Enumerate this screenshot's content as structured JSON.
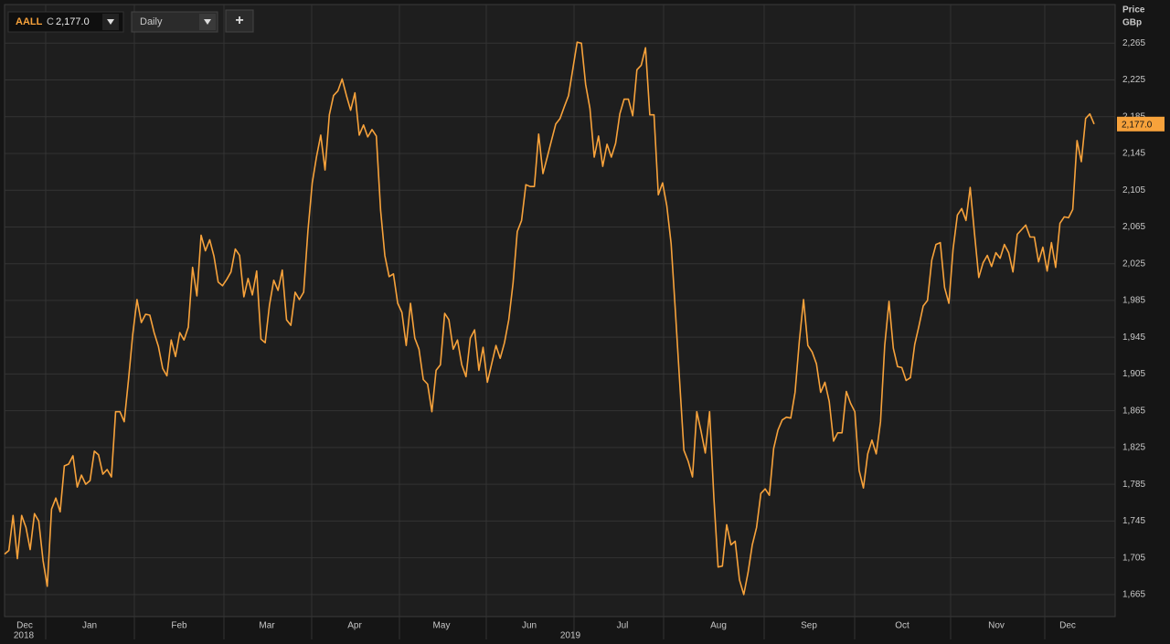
{
  "toolbar": {
    "symbol": "AALL",
    "close_prefix": "C",
    "interval": "Daily",
    "add": "+"
  },
  "chart_data": {
    "type": "line",
    "axis_title": "Price",
    "axis_unit": "GBp",
    "last_price_label": "2,177.0",
    "x_labels": [
      "Dec",
      "Jan",
      "Feb",
      "Mar",
      "Apr",
      "May",
      "Jun",
      "Jul",
      "Aug",
      "Sep",
      "Oct",
      "Nov",
      "Dec"
    ],
    "years": [
      "2018",
      "2019"
    ],
    "ylim": [
      1641,
      2307
    ],
    "yticks": [
      {
        "value": 1665,
        "label": "1,665"
      },
      {
        "value": 1705,
        "label": "1,705"
      },
      {
        "value": 1745,
        "label": "1,745"
      },
      {
        "value": 1785,
        "label": "1,785"
      },
      {
        "value": 1825,
        "label": "1,825"
      },
      {
        "value": 1865,
        "label": "1,865"
      },
      {
        "value": 1905,
        "label": "1,905"
      },
      {
        "value": 1945,
        "label": "1,945"
      },
      {
        "value": 1985,
        "label": "1,985"
      },
      {
        "value": 2025,
        "label": "2,025"
      },
      {
        "value": 2065,
        "label": "2,065"
      },
      {
        "value": 2105,
        "label": "2,105"
      },
      {
        "value": 2145,
        "label": "2,145"
      },
      {
        "value": 2185,
        "label": "2,185"
      },
      {
        "value": 2225,
        "label": "2,225"
      },
      {
        "value": 2265,
        "label": "2,265"
      }
    ],
    "grid": true,
    "series": [
      {
        "name": "AALL",
        "color": "#f7a23b",
        "values": [
          1709,
          1713,
          1751,
          1704,
          1751,
          1738,
          1714,
          1753,
          1745,
          1702,
          1674,
          1758,
          1770,
          1755,
          1805,
          1807,
          1816,
          1782,
          1795,
          1785,
          1789,
          1821,
          1817,
          1796,
          1801,
          1793,
          1864,
          1864,
          1853,
          1899,
          1948,
          1986,
          1961,
          1970,
          1969,
          1950,
          1935,
          1911,
          1903,
          1942,
          1924,
          1950,
          1942,
          1956,
          2021,
          1990,
          2056,
          2039,
          2051,
          2033,
          2005,
          2001,
          2008,
          2016,
          2041,
          2034,
          1989,
          2009,
          1991,
          2017,
          1943,
          1939,
          1980,
          2007,
          1996,
          2018,
          1964,
          1958,
          1994,
          1986,
          1994,
          2061,
          2113,
          2141,
          2165,
          2127,
          2187,
          2208,
          2213,
          2226,
          2208,
          2192,
          2211,
          2165,
          2176,
          2163,
          2171,
          2164,
          2083,
          2034,
          2011,
          2014,
          1982,
          1972,
          1936,
          1982,
          1944,
          1932,
          1899,
          1894,
          1864,
          1909,
          1915,
          1971,
          1964,
          1932,
          1942,
          1915,
          1902,
          1944,
          1953,
          1909,
          1934,
          1896,
          1916,
          1936,
          1922,
          1939,
          1964,
          2004,
          2060,
          2072,
          2111,
          2109,
          2109,
          2166,
          2123,
          2141,
          2159,
          2177,
          2183,
          2196,
          2208,
          2237,
          2266,
          2265,
          2220,
          2194,
          2141,
          2164,
          2131,
          2155,
          2141,
          2156,
          2188,
          2204,
          2204,
          2186,
          2236,
          2241,
          2260,
          2187,
          2187,
          2100,
          2113,
          2088,
          2047,
          1973,
          1896,
          1822,
          1810,
          1793,
          1864,
          1843,
          1819,
          1864,
          1770,
          1695,
          1696,
          1741,
          1719,
          1723,
          1681,
          1665,
          1689,
          1719,
          1738,
          1775,
          1780,
          1773,
          1824,
          1844,
          1855,
          1858,
          1857,
          1885,
          1941,
          1986,
          1936,
          1929,
          1916,
          1885,
          1896,
          1875,
          1832,
          1841,
          1841,
          1886,
          1873,
          1864,
          1800,
          1781,
          1818,
          1833,
          1818,
          1853,
          1936,
          1984,
          1933,
          1913,
          1912,
          1898,
          1901,
          1937,
          1957,
          1979,
          1985,
          2029,
          2046,
          2048,
          1999,
          1982,
          2041,
          2078,
          2085,
          2072,
          2108,
          2058,
          2010,
          2026,
          2034,
          2022,
          2037,
          2031,
          2046,
          2037,
          2016,
          2057,
          2062,
          2067,
          2054,
          2054,
          2027,
          2043,
          2017,
          2048,
          2021,
          2069,
          2076,
          2075,
          2084,
          2159,
          2136,
          2183,
          2188,
          2177
        ]
      }
    ]
  }
}
